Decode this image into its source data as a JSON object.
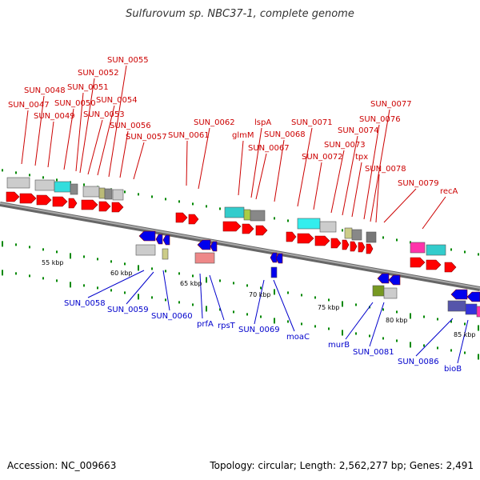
{
  "title": "Sulfurovum sp. NBC37-1, complete genome",
  "footer": {
    "accession": "Accession: NC_009663",
    "topology": "Topology: circular; Length: 2,562,277 bp; Genes: 2,491"
  },
  "colors": {
    "forward_gene": "#ff0000",
    "reverse_gene": "#0000ee",
    "forward_label": "#cc0000",
    "reverse_label": "#0000cc",
    "backbone": "#999999",
    "tick": "#008800"
  },
  "kbp_labels": [
    "55 kbp",
    "60 kbp",
    "65 kbp",
    "70 kbp",
    "75 kbp",
    "80 kbp",
    "85 kbp"
  ],
  "forward_genes": [
    "SUN_0047",
    "SUN_0048",
    "SUN_0049",
    "SUN_0050",
    "SUN_0051",
    "SUN_0052",
    "SUN_0053",
    "SUN_0054",
    "SUN_0055",
    "SUN_0056",
    "SUN_0057",
    "SUN_0061",
    "SUN_0062",
    "glmM",
    "lspA",
    "SUN_0067",
    "SUN_0068",
    "SUN_0071",
    "SUN_0072",
    "SUN_0073",
    "SUN_0074",
    "tpx",
    "SUN_0076",
    "SUN_0077",
    "SUN_0078",
    "SUN_0079",
    "recA"
  ],
  "reverse_genes": [
    "SUN_0058",
    "SUN_0059",
    "SUN_0060",
    "prfA",
    "rpsT",
    "SUN_0069",
    "moaC",
    "murB",
    "SUN_0081",
    "SUN_0086",
    "bioB"
  ]
}
